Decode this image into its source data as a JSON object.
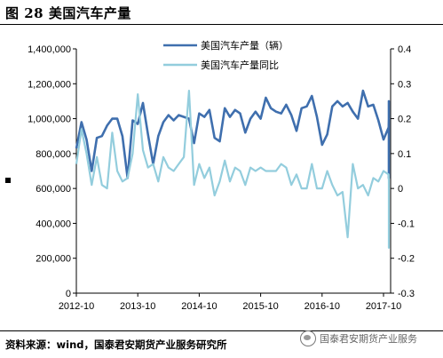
{
  "figure": {
    "title": "图 28 美国汽车产量",
    "source": "资料来源：wind，国泰君安期货产业服务研究所",
    "watermark": "国泰君安期货产业服务"
  },
  "colors": {
    "production": "#3f6fae",
    "yoy": "#93cddd"
  },
  "chart_data": {
    "type": "line",
    "title": "",
    "xlabel": "",
    "ylabel": "",
    "y_left_ticks": [
      "1,400,000",
      "1,200,000",
      "1,000,000",
      "800,000",
      "600,000",
      "400,000",
      "200,000",
      "0"
    ],
    "y_right_ticks": [
      "0.4",
      "0.3",
      "0.2",
      "0.1",
      "0",
      "-0.1",
      "-0.2",
      "-0.3"
    ],
    "x_ticks": [
      "2012-10",
      "2013-10",
      "2014-10",
      "2015-10",
      "2016-10",
      "2017-10"
    ],
    "ylim_left": [
      0,
      1400000
    ],
    "ylim_right": [
      -0.3,
      0.4
    ],
    "legend_position": "top-center",
    "grid": false,
    "start": "2012-10",
    "series": [
      {
        "name": "美国汽车产量（辆）",
        "axis": "left",
        "values": [
          830000,
          980000,
          880000,
          700000,
          890000,
          900000,
          960000,
          1000000,
          1000000,
          900000,
          660000,
          990000,
          970000,
          1090000,
          910000,
          740000,
          900000,
          980000,
          1020000,
          990000,
          1020000,
          1010000,
          1000000,
          860000,
          1030000,
          1010000,
          1050000,
          890000,
          870000,
          1060000,
          1010000,
          1050000,
          1030000,
          920000,
          1000000,
          1040000,
          1000000,
          1120000,
          1060000,
          1040000,
          1030000,
          1080000,
          1020000,
          930000,
          1060000,
          1070000,
          1130000,
          1010000,
          850000,
          910000,
          1070000,
          1100000,
          1070000,
          1090000,
          1040000,
          1000000,
          1160000,
          1070000,
          1080000,
          990000,
          880000,
          950000,
          1000000,
          1100000,
          900000,
          1050000,
          1000000,
          660000,
          1000000,
          880000,
          1010000
        ]
      },
      {
        "name": "美国汽车产量同比",
        "axis": "right",
        "values": [
          0.07,
          0.17,
          0.1,
          0.01,
          0.09,
          0.01,
          0.0,
          0.16,
          0.05,
          0.02,
          0.03,
          0.1,
          0.27,
          0.11,
          0.06,
          0.07,
          0.02,
          0.09,
          0.06,
          0.05,
          0.07,
          0.09,
          0.28,
          0.01,
          0.07,
          0.03,
          0.06,
          -0.02,
          0.02,
          0.08,
          0.02,
          0.06,
          0.05,
          0.01,
          0.06,
          0.05,
          0.06,
          0.05,
          0.05,
          0.05,
          0.07,
          0.06,
          0.01,
          0.04,
          0.0,
          0.0,
          0.07,
          0.0,
          0.0,
          0.05,
          0.01,
          -0.02,
          -0.01,
          -0.14,
          0.07,
          0.0,
          0.01,
          -0.02,
          0.03,
          0.02,
          0.05,
          0.04,
          0.02,
          -0.08,
          0.0,
          -0.15,
          0.03,
          -0.08,
          -0.17,
          -0.13,
          -0.07
        ]
      }
    ]
  }
}
